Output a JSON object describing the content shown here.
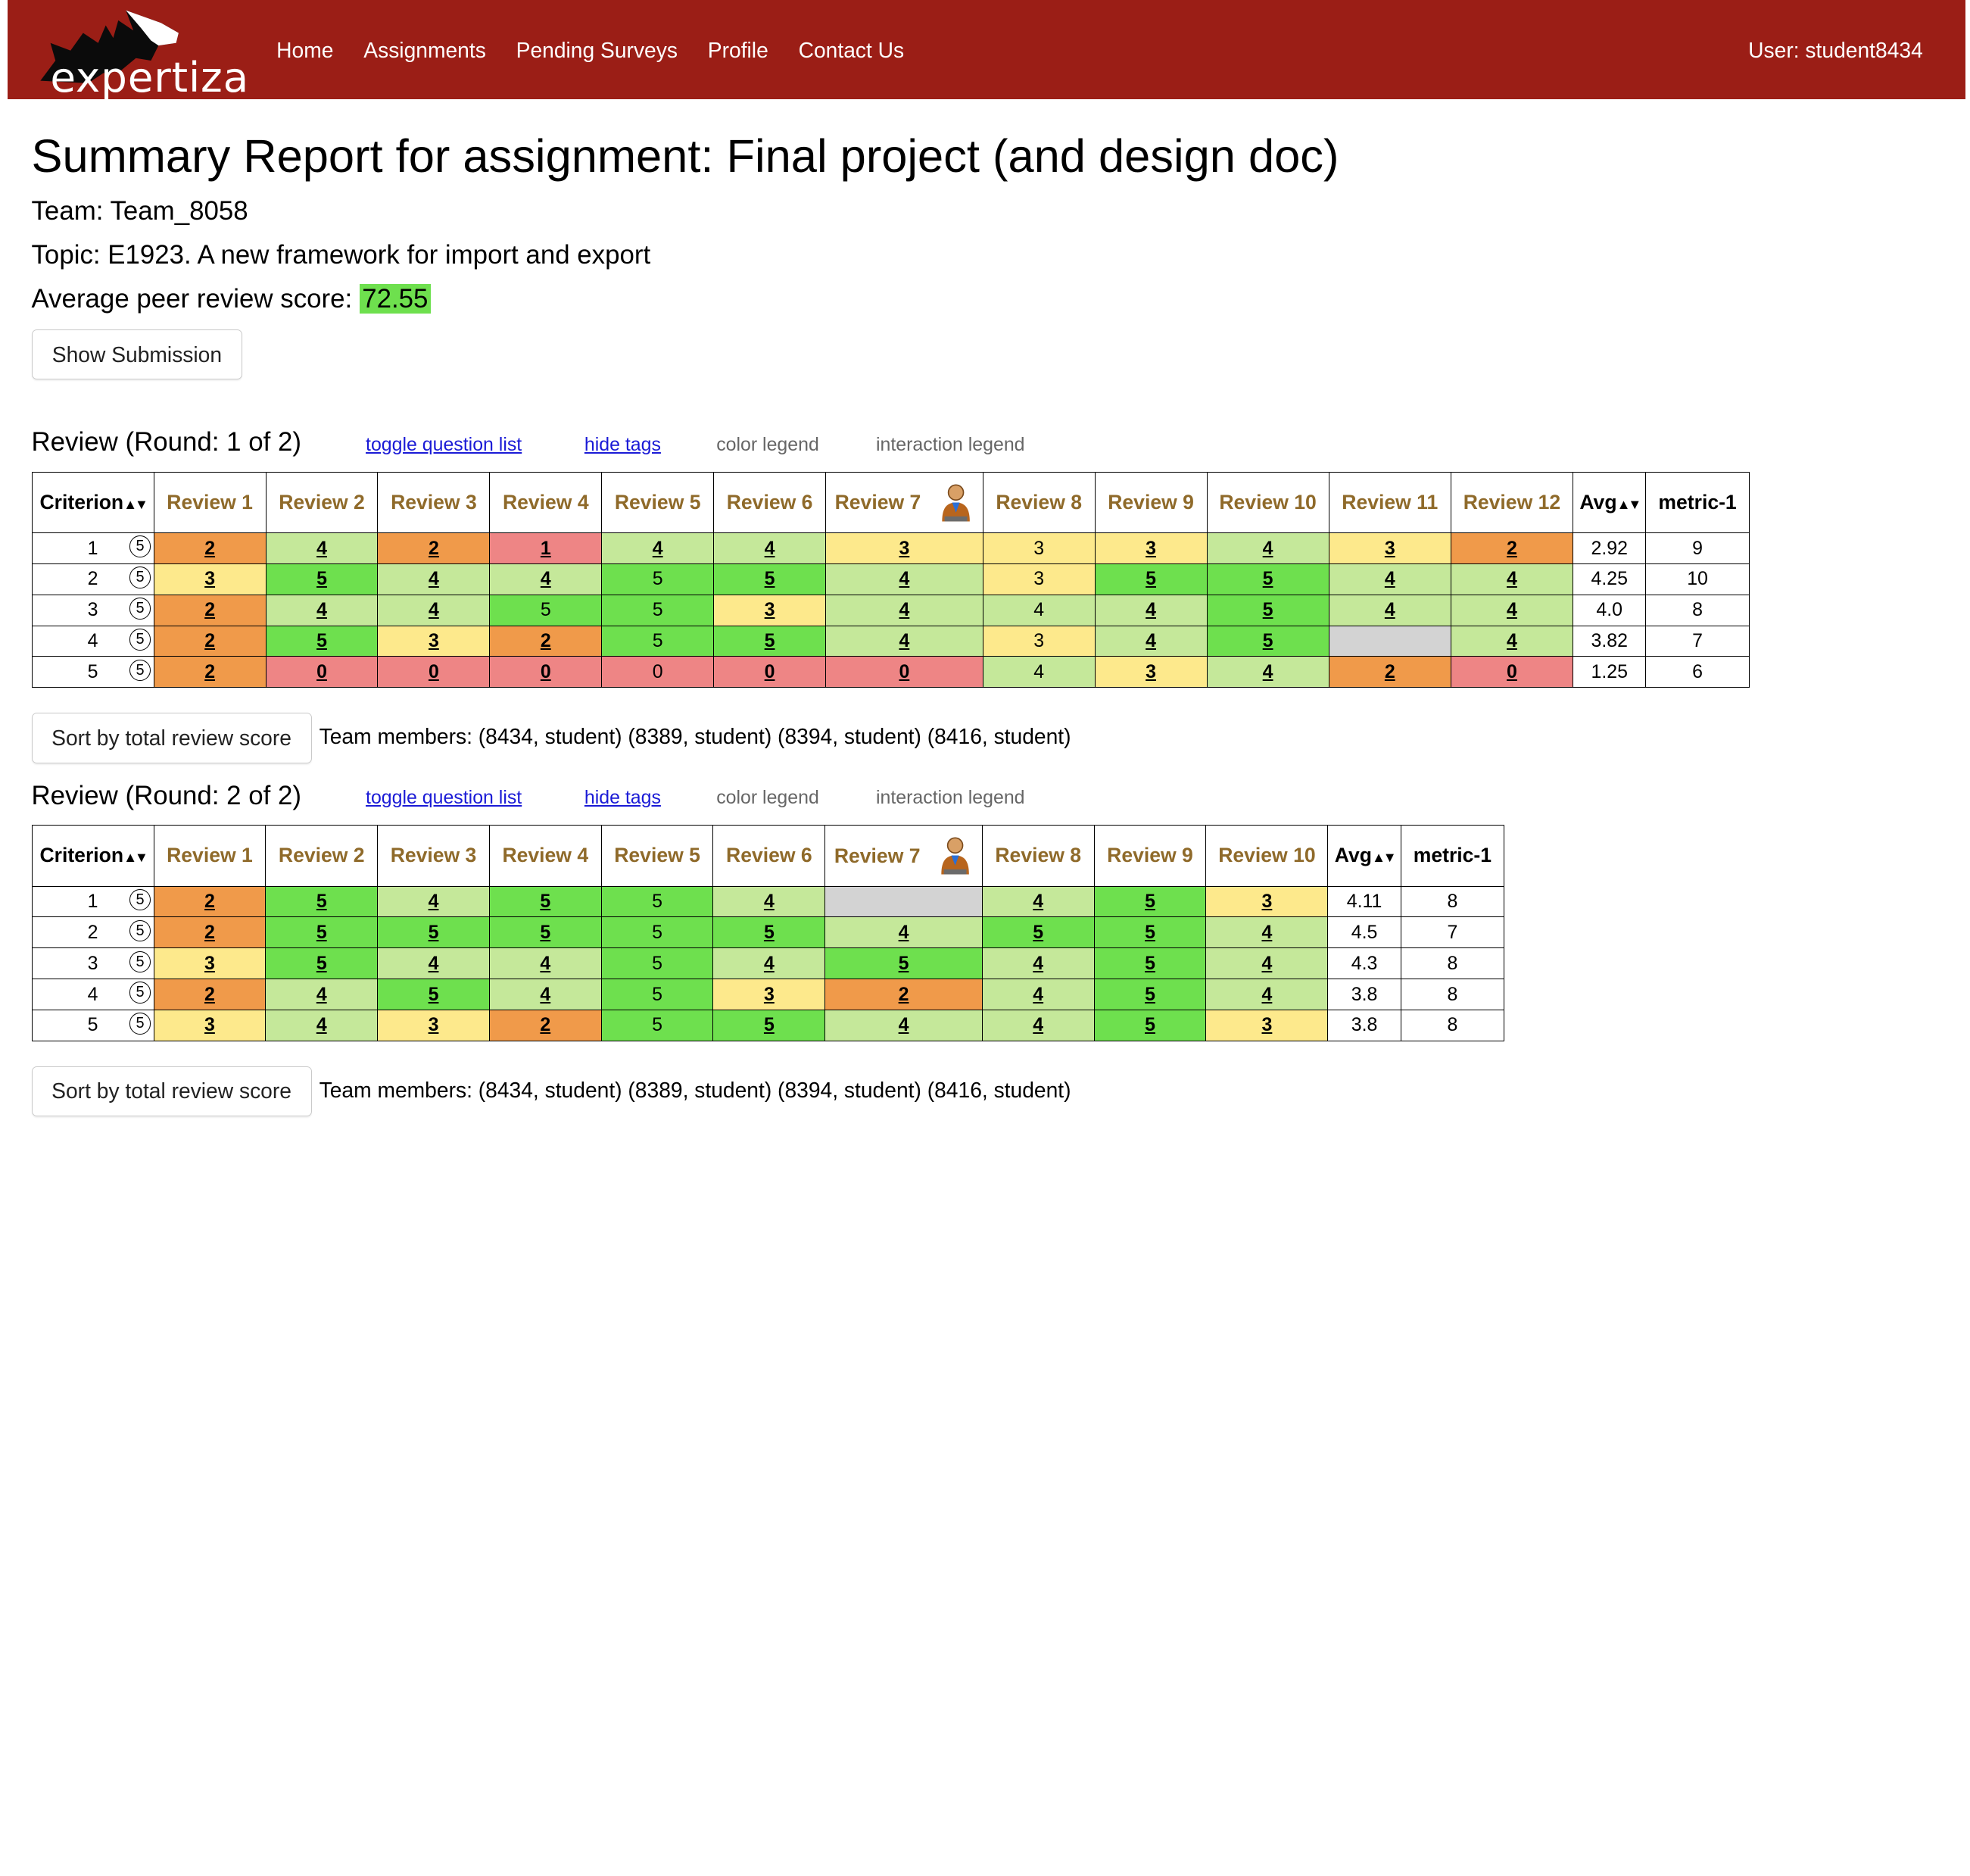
{
  "nav": {
    "logo_text": "expertiza",
    "links": [
      "Home",
      "Assignments",
      "Pending Surveys",
      "Profile",
      "Contact Us"
    ],
    "user": "User: student8434"
  },
  "colors": {
    "navbar": "#9b1e16",
    "score_0_1": "#ee8585",
    "score_2": "#f09a4a",
    "score_3": "#fde98c",
    "score_4": "#c5e89a",
    "score_5": "#6ee04e",
    "empty": "#d3d3d3",
    "review_header": "#8f6a2a"
  },
  "header": {
    "title": "Summary Report for assignment: Final project (and design doc)",
    "team": "Team: Team_8058",
    "topic": "Topic: E1923. A new framework for import and export",
    "avg_label": "Average peer review score:",
    "avg_value": "72.55",
    "show_submission": "Show Submission"
  },
  "controls": {
    "toggle": "toggle question list",
    "hide_tags": "hide tags",
    "color_legend": "color legend",
    "interaction_legend": "interaction legend",
    "sort_button": "Sort by total review score",
    "team_members": "Team members: (8434, student) (8389, student) (8394, student) (8416, student)"
  },
  "rounds": [
    {
      "title": "Review (Round: 1 of 2)",
      "criterion_header": "Criterion",
      "avg_header": "Avg",
      "metric_header": "metric-1",
      "reviews": [
        "Review 1",
        "Review 2",
        "Review 3",
        "Review 4",
        "Review 5",
        "Review 6",
        "Review 7",
        "Review 8",
        "Review 9",
        "Review 10",
        "Review 11",
        "Review 12"
      ],
      "rows": [
        {
          "criterion": "1",
          "max": "⑤",
          "cells": [
            [
              "2",
              "a"
            ],
            [
              "4",
              "a"
            ],
            [
              "2",
              "a"
            ],
            [
              "1",
              "a"
            ],
            [
              "4",
              "a"
            ],
            [
              "4",
              "a"
            ],
            [
              "3",
              "a"
            ],
            [
              "3",
              "p"
            ],
            [
              "3",
              "a"
            ],
            [
              "4",
              "a"
            ],
            [
              "3",
              "a"
            ],
            [
              "2",
              "a"
            ]
          ],
          "avg": "2.92",
          "metric": "9"
        },
        {
          "criterion": "2",
          "max": "⑤",
          "cells": [
            [
              "3",
              "a"
            ],
            [
              "5",
              "a"
            ],
            [
              "4",
              "a"
            ],
            [
              "4",
              "a"
            ],
            [
              "5",
              "p"
            ],
            [
              "5",
              "a"
            ],
            [
              "4",
              "a"
            ],
            [
              "3",
              "p"
            ],
            [
              "5",
              "a"
            ],
            [
              "5",
              "a"
            ],
            [
              "4",
              "a"
            ],
            [
              "4",
              "a"
            ]
          ],
          "avg": "4.25",
          "metric": "10"
        },
        {
          "criterion": "3",
          "max": "⑤",
          "cells": [
            [
              "2",
              "a"
            ],
            [
              "4",
              "a"
            ],
            [
              "4",
              "a"
            ],
            [
              "5",
              "p"
            ],
            [
              "5",
              "p"
            ],
            [
              "3",
              "a"
            ],
            [
              "4",
              "a"
            ],
            [
              "4",
              "p"
            ],
            [
              "4",
              "a"
            ],
            [
              "5",
              "a"
            ],
            [
              "4",
              "a"
            ],
            [
              "4",
              "a"
            ]
          ],
          "avg": "4.0",
          "metric": "8"
        },
        {
          "criterion": "4",
          "max": "⑤",
          "cells": [
            [
              "2",
              "a"
            ],
            [
              "5",
              "a"
            ],
            [
              "3",
              "a"
            ],
            [
              "2",
              "a"
            ],
            [
              "5",
              "p"
            ],
            [
              "5",
              "a"
            ],
            [
              "4",
              "a"
            ],
            [
              "3",
              "p"
            ],
            [
              "4",
              "a"
            ],
            [
              "5",
              "a"
            ],
            [
              "",
              "x"
            ],
            [
              "4",
              "a"
            ]
          ],
          "avg": "3.82",
          "metric": "7"
        },
        {
          "criterion": "5",
          "max": "⑤",
          "cells": [
            [
              "2",
              "a"
            ],
            [
              "0",
              "a"
            ],
            [
              "0",
              "a"
            ],
            [
              "0",
              "a"
            ],
            [
              "0",
              "p"
            ],
            [
              "0",
              "a"
            ],
            [
              "0",
              "a"
            ],
            [
              "4",
              "p"
            ],
            [
              "3",
              "a"
            ],
            [
              "4",
              "a"
            ],
            [
              "2",
              "a"
            ],
            [
              "0",
              "a"
            ]
          ],
          "avg": "1.25",
          "metric": "6"
        }
      ]
    },
    {
      "title": "Review (Round: 2 of 2)",
      "criterion_header": "Criterion",
      "avg_header": "Avg",
      "metric_header": "metric-1",
      "reviews": [
        "Review 1",
        "Review 2",
        "Review 3",
        "Review 4",
        "Review 5",
        "Review 6",
        "Review 7",
        "Review 8",
        "Review 9",
        "Review 10"
      ],
      "rows": [
        {
          "criterion": "1",
          "max": "⑤",
          "cells": [
            [
              "2",
              "a"
            ],
            [
              "5",
              "a"
            ],
            [
              "4",
              "a"
            ],
            [
              "5",
              "a"
            ],
            [
              "5",
              "p"
            ],
            [
              "4",
              "a"
            ],
            [
              "",
              "x"
            ],
            [
              "4",
              "a"
            ],
            [
              "5",
              "a"
            ],
            [
              "3",
              "a"
            ]
          ],
          "avg": "4.11",
          "metric": "8"
        },
        {
          "criterion": "2",
          "max": "⑤",
          "cells": [
            [
              "2",
              "a"
            ],
            [
              "5",
              "a"
            ],
            [
              "5",
              "a"
            ],
            [
              "5",
              "a"
            ],
            [
              "5",
              "p"
            ],
            [
              "5",
              "a"
            ],
            [
              "4",
              "a"
            ],
            [
              "5",
              "a"
            ],
            [
              "5",
              "a"
            ],
            [
              "4",
              "a"
            ]
          ],
          "avg": "4.5",
          "metric": "7"
        },
        {
          "criterion": "3",
          "max": "⑤",
          "cells": [
            [
              "3",
              "a"
            ],
            [
              "5",
              "a"
            ],
            [
              "4",
              "a"
            ],
            [
              "4",
              "a"
            ],
            [
              "5",
              "p"
            ],
            [
              "4",
              "a"
            ],
            [
              "5",
              "a"
            ],
            [
              "4",
              "a"
            ],
            [
              "5",
              "a"
            ],
            [
              "4",
              "a"
            ]
          ],
          "avg": "4.3",
          "metric": "8"
        },
        {
          "criterion": "4",
          "max": "⑤",
          "cells": [
            [
              "2",
              "a"
            ],
            [
              "4",
              "a"
            ],
            [
              "5",
              "a"
            ],
            [
              "4",
              "a"
            ],
            [
              "5",
              "p"
            ],
            [
              "3",
              "a"
            ],
            [
              "2",
              "a"
            ],
            [
              "4",
              "a"
            ],
            [
              "5",
              "a"
            ],
            [
              "4",
              "a"
            ]
          ],
          "avg": "3.8",
          "metric": "8"
        },
        {
          "criterion": "5",
          "max": "⑤",
          "cells": [
            [
              "3",
              "a"
            ],
            [
              "4",
              "a"
            ],
            [
              "3",
              "a"
            ],
            [
              "2",
              "a"
            ],
            [
              "5",
              "p"
            ],
            [
              "5",
              "a"
            ],
            [
              "4",
              "a"
            ],
            [
              "4",
              "a"
            ],
            [
              "5",
              "a"
            ],
            [
              "3",
              "a"
            ]
          ],
          "avg": "3.8",
          "metric": "8"
        }
      ]
    }
  ]
}
